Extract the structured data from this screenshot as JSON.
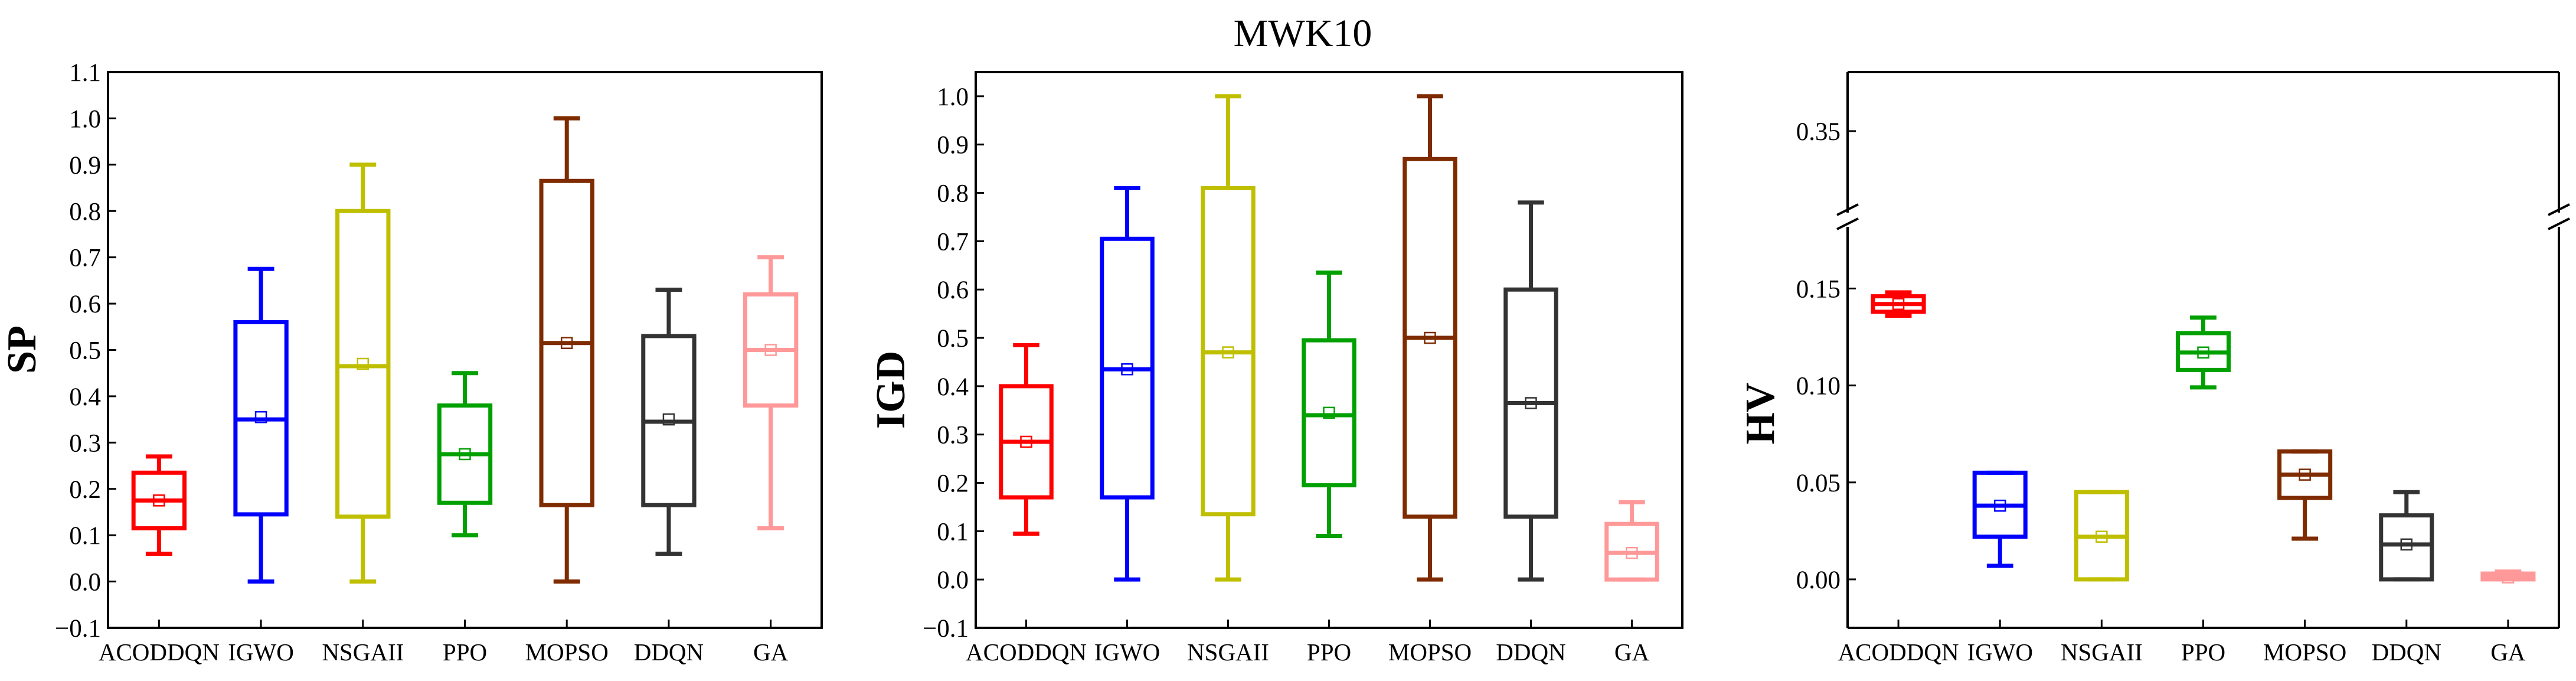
{
  "title": "MWK10",
  "chart_data": [
    {
      "type": "box",
      "id": "sp",
      "ylabel": "SP",
      "ylim": [
        -0.1,
        1.1
      ],
      "yticks": [
        -0.1,
        0.0,
        0.1,
        0.2,
        0.3,
        0.4,
        0.5,
        0.6,
        0.7,
        0.8,
        0.9,
        1.0,
        1.1
      ],
      "ytick_labels": [
        "−0.1",
        "0.0",
        "0.1",
        "0.2",
        "0.3",
        "0.4",
        "0.5",
        "0.6",
        "0.7",
        "0.8",
        "0.9",
        "1.0",
        "1.1"
      ],
      "categories": [
        "ACODDQN",
        "IGWO",
        "NSGAII",
        "PPO",
        "MOPSO",
        "DDQN",
        "GA"
      ],
      "colors": [
        "#ff0000",
        "#0000ff",
        "#bfbf00",
        "#00a000",
        "#7f2b00",
        "#333333",
        "#ff9999"
      ],
      "boxes": [
        {
          "min": 0.06,
          "q1": 0.115,
          "median": 0.175,
          "q3": 0.235,
          "max": 0.27,
          "mean": 0.175
        },
        {
          "min": 0.0,
          "q1": 0.145,
          "median": 0.35,
          "q3": 0.56,
          "max": 0.675,
          "mean": 0.355
        },
        {
          "min": 0.0,
          "q1": 0.14,
          "median": 0.465,
          "q3": 0.8,
          "max": 0.9,
          "mean": 0.47
        },
        {
          "min": 0.1,
          "q1": 0.17,
          "median": 0.275,
          "q3": 0.38,
          "max": 0.45,
          "mean": 0.275
        },
        {
          "min": 0.0,
          "q1": 0.165,
          "median": 0.515,
          "q3": 0.865,
          "max": 1.0,
          "mean": 0.515
        },
        {
          "min": 0.06,
          "q1": 0.165,
          "median": 0.345,
          "q3": 0.53,
          "max": 0.63,
          "mean": 0.35
        },
        {
          "min": 0.115,
          "q1": 0.38,
          "median": 0.5,
          "q3": 0.62,
          "max": 0.7,
          "mean": 0.5
        }
      ]
    },
    {
      "type": "box",
      "id": "igd",
      "ylabel": "IGD",
      "ylim": [
        -0.1,
        1.05
      ],
      "yticks": [
        -0.1,
        0.0,
        0.1,
        0.2,
        0.3,
        0.4,
        0.5,
        0.6,
        0.7,
        0.8,
        0.9,
        1.0
      ],
      "ytick_labels": [
        "−0.1",
        "0.0",
        "0.1",
        "0.2",
        "0.3",
        "0.4",
        "0.5",
        "0.6",
        "0.7",
        "0.8",
        "0.9",
        "1.0"
      ],
      "categories": [
        "ACODDQN",
        "IGWO",
        "NSGAII",
        "PPO",
        "MOPSO",
        "DDQN",
        "GA"
      ],
      "colors": [
        "#ff0000",
        "#0000ff",
        "#bfbf00",
        "#00a000",
        "#7f2b00",
        "#333333",
        "#ff9999"
      ],
      "boxes": [
        {
          "min": 0.095,
          "q1": 0.17,
          "median": 0.285,
          "q3": 0.4,
          "max": 0.485,
          "mean": 0.285
        },
        {
          "min": 0.0,
          "q1": 0.17,
          "median": 0.435,
          "q3": 0.705,
          "max": 0.81,
          "mean": 0.435
        },
        {
          "min": 0.0,
          "q1": 0.135,
          "median": 0.47,
          "q3": 0.81,
          "max": 1.0,
          "mean": 0.47
        },
        {
          "min": 0.09,
          "q1": 0.195,
          "median": 0.34,
          "q3": 0.495,
          "max": 0.635,
          "mean": 0.345
        },
        {
          "min": 0.0,
          "q1": 0.13,
          "median": 0.5,
          "q3": 0.87,
          "max": 1.0,
          "mean": 0.5
        },
        {
          "min": 0.0,
          "q1": 0.13,
          "median": 0.365,
          "q3": 0.6,
          "max": 0.78,
          "mean": 0.365
        },
        {
          "min": 0.0,
          "q1": 0.0,
          "median": 0.055,
          "q3": 0.115,
          "max": 0.16,
          "mean": 0.055
        }
      ]
    },
    {
      "type": "box",
      "id": "hv",
      "ylabel": "HV",
      "broken_axis": true,
      "ylim_lower": [
        -0.025,
        0.18
      ],
      "ylim_upper": [
        0.32,
        0.37
      ],
      "yticks_lower": [
        0.0,
        0.05,
        0.1,
        0.15
      ],
      "ytick_labels_lower": [
        "0.00",
        "0.05",
        "0.10",
        "0.15"
      ],
      "yticks_upper": [
        0.35
      ],
      "ytick_labels_upper": [
        "0.35"
      ],
      "categories": [
        "ACODDQN",
        "IGWO",
        "NSGAII",
        "PPO",
        "MOPSO",
        "DDQN",
        "GA"
      ],
      "colors": [
        "#ff0000",
        "#0000ff",
        "#bfbf00",
        "#00a000",
        "#7f2b00",
        "#333333",
        "#ff9999"
      ],
      "boxes": [
        {
          "min": 0.136,
          "q1": 0.138,
          "median": 0.142,
          "q3": 0.146,
          "max": 0.148,
          "mean": 0.142
        },
        {
          "min": 0.007,
          "q1": 0.022,
          "median": 0.038,
          "q3": 0.055,
          "max": 0.055,
          "mean": 0.038
        },
        {
          "min": 0.0,
          "q1": 0.0,
          "median": 0.022,
          "q3": 0.045,
          "max": 0.045,
          "mean": 0.022
        },
        {
          "min": 0.099,
          "q1": 0.108,
          "median": 0.117,
          "q3": 0.127,
          "max": 0.135,
          "mean": 0.117
        },
        {
          "min": 0.021,
          "q1": 0.042,
          "median": 0.054,
          "q3": 0.066,
          "max": 0.066,
          "mean": 0.054
        },
        {
          "min": 0.0,
          "q1": 0.0,
          "median": 0.018,
          "q3": 0.033,
          "max": 0.045,
          "mean": 0.018
        },
        {
          "min": 0.0,
          "q1": 0.0,
          "median": 0.001,
          "q3": 0.003,
          "max": 0.004,
          "mean": 0.001
        }
      ]
    }
  ]
}
